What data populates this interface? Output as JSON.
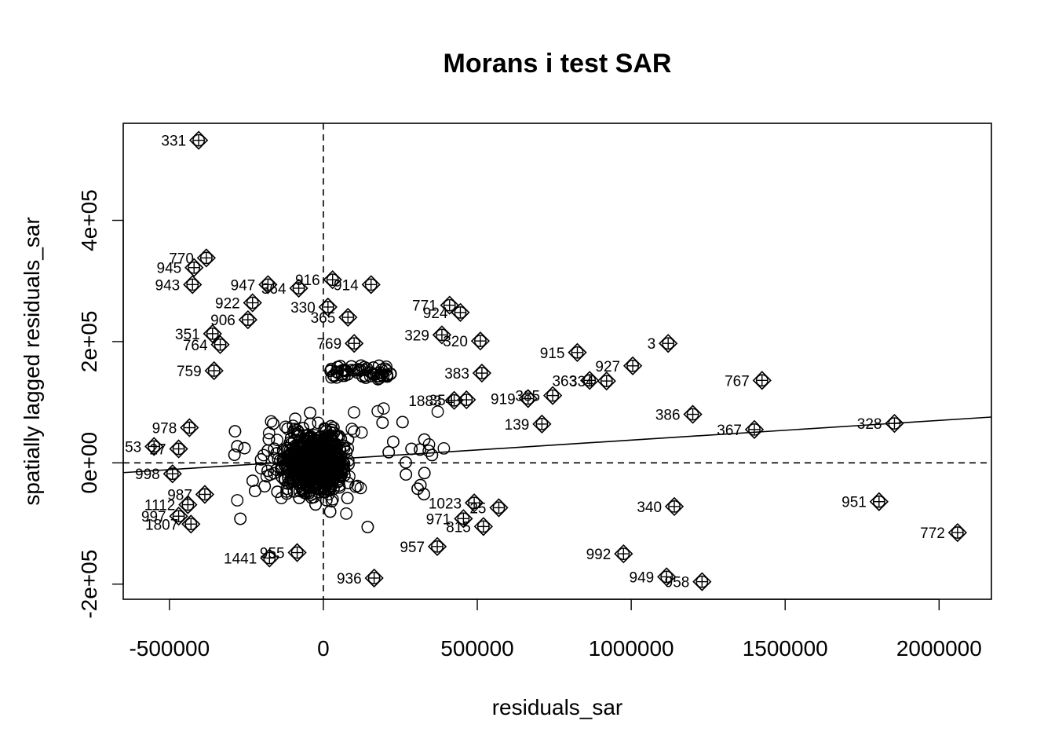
{
  "chart_data": {
    "type": "scatter",
    "title": "Morans i test SAR",
    "xlabel": "residuals_sar",
    "ylabel": "spatially lagged residuals_sar",
    "xlim": [
      -650000,
      2170000
    ],
    "ylim": [
      -225000,
      560000
    ],
    "x_ticks": [
      {
        "value": -500000,
        "label": "-500000"
      },
      {
        "value": 0,
        "label": "0"
      },
      {
        "value": 500000,
        "label": "500000"
      },
      {
        "value": 1000000,
        "label": "1000000"
      },
      {
        "value": 1500000,
        "label": "1500000"
      },
      {
        "value": 2000000,
        "label": "2000000"
      }
    ],
    "y_ticks": [
      {
        "value": -200000,
        "label": "-2e+05"
      },
      {
        "value": 0,
        "label": "0e+00"
      },
      {
        "value": 200000,
        "label": "2e+05"
      },
      {
        "value": 400000,
        "label": "4e+05"
      }
    ],
    "mean_x": 0,
    "mean_y": 0,
    "regression": {
      "intercept": 5000,
      "slope": 0.0325
    },
    "grid": false,
    "legend": "none",
    "influential_points": [
      {
        "label": "331",
        "x": -405000,
        "y": 532000
      },
      {
        "label": "770",
        "x": -380000,
        "y": 338000
      },
      {
        "label": "945",
        "x": -420000,
        "y": 322000
      },
      {
        "label": "943",
        "x": -425000,
        "y": 294000
      },
      {
        "label": "947",
        "x": -180000,
        "y": 294000
      },
      {
        "label": "916",
        "x": 30000,
        "y": 302000
      },
      {
        "label": "914",
        "x": 155000,
        "y": 294000
      },
      {
        "label": "364",
        "x": -80000,
        "y": 288000
      },
      {
        "label": "922",
        "x": -230000,
        "y": 264000
      },
      {
        "label": "330",
        "x": 15000,
        "y": 257000
      },
      {
        "label": "771",
        "x": 410000,
        "y": 260000
      },
      {
        "label": "924",
        "x": 445000,
        "y": 248000
      },
      {
        "label": "906",
        "x": -245000,
        "y": 236000
      },
      {
        "label": "365",
        "x": 80000,
        "y": 240000
      },
      {
        "label": "329",
        "x": 385000,
        "y": 211000
      },
      {
        "label": "320",
        "x": 510000,
        "y": 201000
      },
      {
        "label": "351",
        "x": -360000,
        "y": 213000
      },
      {
        "label": "764",
        "x": -335000,
        "y": 195000
      },
      {
        "label": "769",
        "x": 100000,
        "y": 197000
      },
      {
        "label": "915",
        "x": 825000,
        "y": 182000
      },
      {
        "label": "3",
        "x": 1120000,
        "y": 197000
      },
      {
        "label": "927",
        "x": 1005000,
        "y": 160000
      },
      {
        "label": "759",
        "x": -355000,
        "y": 152000
      },
      {
        "label": "383",
        "x": 515000,
        "y": 148000
      },
      {
        "label": "363",
        "x": 865000,
        "y": 136000
      },
      {
        "label": "334",
        "x": 920000,
        "y": 135000
      },
      {
        "label": "767",
        "x": 1425000,
        "y": 136000
      },
      {
        "label": "919",
        "x": 665000,
        "y": 106000
      },
      {
        "label": "385",
        "x": 745000,
        "y": 111000
      },
      {
        "label": "1883",
        "x": 425000,
        "y": 103000
      },
      {
        "label": "354",
        "x": 465000,
        "y": 104000
      },
      {
        "label": "386",
        "x": 1200000,
        "y": 80000
      },
      {
        "label": "978",
        "x": -435000,
        "y": 58000
      },
      {
        "label": "139",
        "x": 710000,
        "y": 64000
      },
      {
        "label": "367",
        "x": 1400000,
        "y": 55000
      },
      {
        "label": "328",
        "x": 1855000,
        "y": 65000
      },
      {
        "label": "27",
        "x": -470000,
        "y": 23000
      },
      {
        "label": "53",
        "x": -550000,
        "y": 27000
      },
      {
        "label": "998",
        "x": -490000,
        "y": -18000
      },
      {
        "label": "987",
        "x": -385000,
        "y": -52000
      },
      {
        "label": "1112",
        "x": -440000,
        "y": -69000
      },
      {
        "label": "997",
        "x": -470000,
        "y": -88000
      },
      {
        "label": "1807",
        "x": -430000,
        "y": -101000
      },
      {
        "label": "1023",
        "x": 490000,
        "y": -66000
      },
      {
        "label": "25",
        "x": 570000,
        "y": -74000
      },
      {
        "label": "340",
        "x": 1140000,
        "y": -72000
      },
      {
        "label": "951",
        "x": 1805000,
        "y": -64000
      },
      {
        "label": "971",
        "x": 455000,
        "y": -92000
      },
      {
        "label": "815",
        "x": 520000,
        "y": -105000
      },
      {
        "label": "772",
        "x": 2060000,
        "y": -115000
      },
      {
        "label": "957",
        "x": 370000,
        "y": -138000
      },
      {
        "label": "1441",
        "x": -175000,
        "y": -157000
      },
      {
        "label": "955",
        "x": -85000,
        "y": -148000
      },
      {
        "label": "936",
        "x": 165000,
        "y": -190000
      },
      {
        "label": "992",
        "x": 975000,
        "y": -150000
      },
      {
        "label": "949",
        "x": 1115000,
        "y": -188000
      },
      {
        "label": "958",
        "x": 1230000,
        "y": -196000
      }
    ],
    "points_note_free": true
  }
}
